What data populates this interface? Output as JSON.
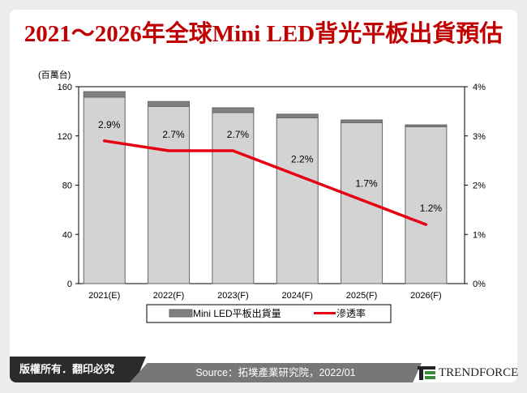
{
  "title": "2021～2026年全球Mini LED背光平板出貨預估",
  "footer": {
    "copyright": "版權所有．翻印必究",
    "source": "Source：拓墣產業研究院，2022/01",
    "logo": "TRENDFORCE"
  },
  "colors": {
    "title": "#c00000",
    "mini_led": "#808080",
    "other": "#d3d3d3",
    "line": "#e60012"
  },
  "chart_data": {
    "type": "bar",
    "categories": [
      "2021(E)",
      "2022(F)",
      "2023(F)",
      "2024(F)",
      "2025(F)",
      "2026(F)"
    ],
    "y_unit_label": "(百萬台)",
    "ylim": [
      0,
      160
    ],
    "yticks": [
      0,
      40,
      80,
      120,
      160
    ],
    "y2lim": [
      0,
      4
    ],
    "y2ticks": [
      "0%",
      "1%",
      "2%",
      "3%",
      "4%"
    ],
    "stacked": true,
    "series": [
      {
        "values": [
          151.5,
          144,
          139,
          134.7,
          130.7,
          127.5
        ],
        "color": "#d3d3d3"
      },
      {
        "name": "Mini LED平板出貨量",
        "values": [
          4.5,
          4.0,
          3.9,
          3.0,
          2.3,
          1.5
        ],
        "color": "#808080"
      },
      {
        "name": "滲透率",
        "type": "line",
        "axis": "right",
        "values": [
          2.9,
          2.7,
          2.7,
          2.2,
          1.7,
          1.2
        ],
        "labels": [
          "2.9%",
          "2.7%",
          "2.7%",
          "2.2%",
          "1.7%",
          "1.2%"
        ],
        "color": "#e60012"
      }
    ],
    "legend": "bottom"
  }
}
